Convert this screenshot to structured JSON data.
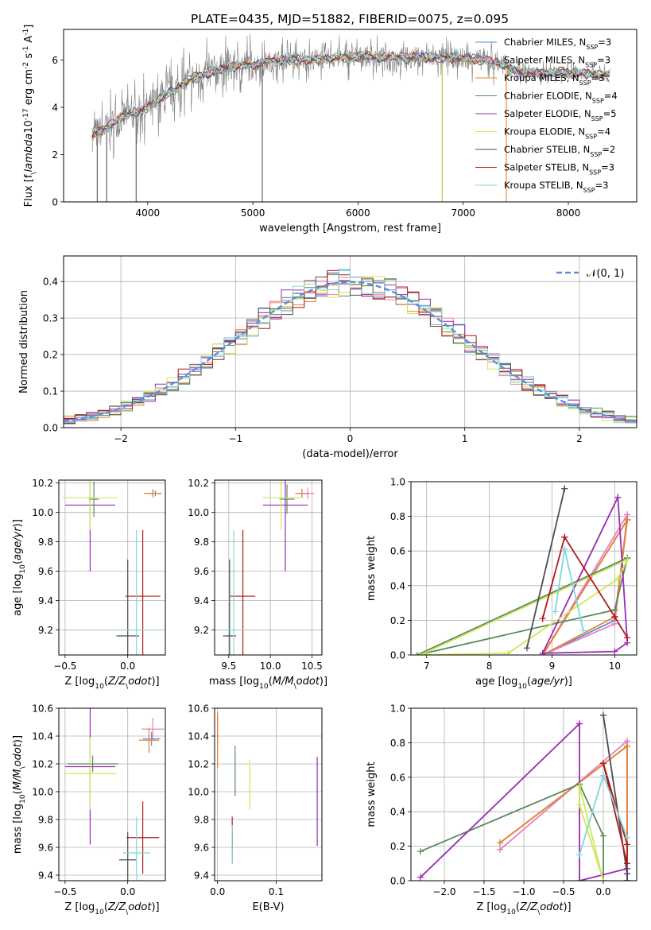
{
  "figure_title": "PLATE=0435, MJD=51882, FIBERID=0075, z=0.095",
  "colors": {
    "Chabrier MILES": "#5a8fd6",
    "Salpeter MILES": "#e87fc0",
    "Kroupa MILES": "#e8822e",
    "Chabrier ELODIE": "#5a8a5e",
    "Salpeter ELODIE": "#9a2bb5",
    "Kroupa ELODIE": "#cfe85a",
    "Chabrier STELIB": "#4d4d4d",
    "Salpeter STELIB": "#b01a1a",
    "Kroupa STELIB": "#7ed8dc",
    "data": "#808080",
    "gaussian": "#5a8fd6",
    "grid": "#b0b0b0"
  },
  "legend_spectrum": [
    "Chabrier MILES, N$_{SSP}$=3",
    "Salpeter MILES, N$_{SSP}$=3",
    "Kroupa MILES, N$_{SSP}$=3",
    "Chabrier ELODIE, N$_{SSP}$=4",
    "Salpeter ELODIE, N$_{SSP}$=5",
    "Kroupa ELODIE, N$_{SSP}$=4",
    "Chabrier STELIB, N$_{SSP}$=2",
    "Salpeter STELIB, N$_{SSP}$=3",
    "Kroupa STELIB, N$_{SSP}$=3"
  ],
  "chart_data": [
    {
      "id": "spectrum",
      "type": "line",
      "xlabel": "wavelength [Angstrom, rest frame]",
      "ylabel": "Flux [f$_\\lambda$10$^{-17}$ erg cm$^{-2}$ s$^{-1}$ A$^{-1}$]",
      "xlim": [
        3200,
        8650
      ],
      "ylim": [
        0,
        7.3
      ],
      "xticks": [
        4000,
        5000,
        6000,
        7000,
        8000
      ],
      "yticks": [
        0,
        2,
        4,
        6
      ],
      "continuum": {
        "x": [
          3470,
          3600,
          3700,
          3800,
          3900,
          4000,
          4100,
          4200,
          4300,
          4400,
          4500,
          4600,
          4700,
          4800,
          4900,
          5000,
          5100,
          5200,
          5300,
          5400,
          5500,
          5600,
          5700,
          5800,
          5900,
          6000,
          6100,
          6200,
          6300,
          6400,
          6500,
          6600,
          6700,
          6800,
          6900,
          7000,
          7100,
          7200,
          7300,
          7400,
          7500,
          7600,
          7700,
          7800,
          7900,
          8000,
          8100,
          8200,
          8300,
          8400
        ],
        "y": [
          2.8,
          3.1,
          3.4,
          3.7,
          3.8,
          4.0,
          4.3,
          4.6,
          4.9,
          5.2,
          5.3,
          5.5,
          5.6,
          5.7,
          5.8,
          5.8,
          5.9,
          5.95,
          6.0,
          6.0,
          6.0,
          6.05,
          6.05,
          6.1,
          6.1,
          6.15,
          6.15,
          6.1,
          6.15,
          6.1,
          6.1,
          6.15,
          6.1,
          6.1,
          6.1,
          6.05,
          6.05,
          6.0,
          5.9,
          5.8,
          5.5,
          5.5,
          5.45,
          5.45,
          5.5,
          5.45,
          5.45,
          5.4,
          5.4,
          5.3
        ]
      },
      "spikes": [
        [
          3520,
          0
        ],
        [
          3610,
          0
        ],
        [
          3890,
          0
        ],
        [
          5090,
          0
        ],
        [
          6800,
          0
        ],
        [
          7410,
          0
        ]
      ]
    },
    {
      "id": "residuals",
      "type": "line",
      "xlabel": "(data-model)/error",
      "ylabel": "Normed distribution",
      "xlim": [
        -2.5,
        2.5
      ],
      "ylim": [
        0,
        0.47
      ],
      "xticks": [
        -2,
        -1,
        0,
        1,
        2
      ],
      "yticks": [
        0.0,
        0.1,
        0.2,
        0.3,
        0.4
      ],
      "legend": "$\\mathcal{N}(0,1)$",
      "x": [
        -2.5,
        -2.4,
        -2.3,
        -2.2,
        -2.1,
        -2.0,
        -1.9,
        -1.8,
        -1.7,
        -1.6,
        -1.5,
        -1.4,
        -1.3,
        -1.2,
        -1.1,
        -1.0,
        -0.9,
        -0.8,
        -0.7,
        -0.6,
        -0.5,
        -0.4,
        -0.3,
        -0.2,
        -0.1,
        0.0,
        0.1,
        0.2,
        0.3,
        0.4,
        0.5,
        0.6,
        0.7,
        0.8,
        0.9,
        1.0,
        1.1,
        1.2,
        1.3,
        1.4,
        1.5,
        1.6,
        1.7,
        1.8,
        1.9,
        2.0,
        2.1,
        2.2,
        2.3,
        2.4,
        2.5
      ],
      "gaussian": [
        0.018,
        0.022,
        0.028,
        0.035,
        0.044,
        0.054,
        0.066,
        0.079,
        0.094,
        0.111,
        0.13,
        0.15,
        0.171,
        0.194,
        0.218,
        0.242,
        0.266,
        0.29,
        0.312,
        0.333,
        0.352,
        0.368,
        0.381,
        0.391,
        0.397,
        0.399,
        0.397,
        0.391,
        0.381,
        0.368,
        0.352,
        0.333,
        0.312,
        0.29,
        0.266,
        0.242,
        0.218,
        0.194,
        0.171,
        0.15,
        0.13,
        0.111,
        0.094,
        0.079,
        0.066,
        0.054,
        0.044,
        0.035,
        0.028,
        0.022,
        0.018
      ]
    },
    {
      "id": "age-vs-Z",
      "type": "scatter",
      "xlabel": "Z [log$_{10}$($Z/Z_\\odot$)]",
      "ylabel": "age  [log$_{10}$($age/yr$)]",
      "xlim": [
        -0.55,
        0.3
      ],
      "ylim": [
        9.03,
        10.22
      ],
      "xticks": [
        -0.5,
        0.0
      ],
      "yticks": [
        9.2,
        9.4,
        9.6,
        9.8,
        10.0,
        10.2
      ],
      "points": [
        {
          "series": "Chabrier MILES",
          "x": 0.22,
          "y": 10.13,
          "xerr": 0.05,
          "yerr": 0.02
        },
        {
          "series": "Salpeter MILES",
          "x": 0.2,
          "y": 10.13,
          "xerr": 0.06,
          "yerr": 0.03
        },
        {
          "series": "Kroupa MILES",
          "x": 0.2,
          "y": 10.13,
          "xerr": 0.07,
          "yerr": 0.02
        },
        {
          "series": "Chabrier ELODIE",
          "x": -0.27,
          "y": 10.09,
          "xerr": 0.04,
          "yerr": 0.12
        },
        {
          "series": "Salpeter ELODIE",
          "x": -0.3,
          "y": 10.05,
          "xerr": 0.2,
          "yerr": 0.45
        },
        {
          "series": "Kroupa ELODIE",
          "x": -0.3,
          "y": 10.1,
          "xerr": 0.22,
          "yerr": 0.22
        },
        {
          "series": "Chabrier STELIB",
          "x": 0.0,
          "y": 9.16,
          "xerr": 0.09,
          "yerr": 0.52
        },
        {
          "series": "Salpeter STELIB",
          "x": 0.12,
          "y": 9.43,
          "xerr": 0.14,
          "yerr": 0.45
        },
        {
          "series": "Kroupa STELIB",
          "x": 0.07,
          "y": 9.2,
          "xerr": 0.14,
          "yerr": 0.68
        }
      ]
    },
    {
      "id": "age-vs-mass",
      "type": "scatter",
      "xlabel": "mass [log$_{10}$($M/M_\\odot$)]",
      "ylabel": "",
      "xlim": [
        9.33,
        10.62
      ],
      "ylim": [
        9.03,
        10.22
      ],
      "xticks": [
        9.5,
        10.0,
        10.5
      ],
      "yticks": [
        9.2,
        9.4,
        9.6,
        9.8,
        10.0,
        10.2
      ],
      "points": [
        {
          "series": "Chabrier MILES",
          "x": 10.38,
          "y": 10.13,
          "xerr": 0.07,
          "yerr": 0.03
        },
        {
          "series": "Salpeter MILES",
          "x": 10.45,
          "y": 10.13,
          "xerr": 0.08,
          "yerr": 0.04
        },
        {
          "series": "Kroupa MILES",
          "x": 10.38,
          "y": 10.13,
          "xerr": 0.08,
          "yerr": 0.03
        },
        {
          "series": "Chabrier ELODIE",
          "x": 10.2,
          "y": 10.09,
          "xerr": 0.09,
          "yerr": 0.1
        },
        {
          "series": "Salpeter ELODIE",
          "x": 10.18,
          "y": 10.05,
          "xerr": 0.27,
          "yerr": 0.45
        },
        {
          "series": "Kroupa ELODIE",
          "x": 10.13,
          "y": 10.1,
          "xerr": 0.23,
          "yerr": 0.22
        },
        {
          "series": "Chabrier STELIB",
          "x": 9.51,
          "y": 9.16,
          "xerr": 0.08,
          "yerr": 0.52
        },
        {
          "series": "Salpeter STELIB",
          "x": 9.67,
          "y": 9.43,
          "xerr": 0.15,
          "yerr": 0.45
        },
        {
          "series": "Kroupa STELIB",
          "x": 9.56,
          "y": 9.2,
          "xerr": 0.12,
          "yerr": 0.68
        }
      ]
    },
    {
      "id": "weight-vs-age",
      "type": "line",
      "xlabel": "age  [log$_{10}$($age/yr$)]",
      "ylabel": "mass weight",
      "xlim": [
        6.75,
        10.35
      ],
      "ylim": [
        0,
        1.0
      ],
      "xticks": [
        7,
        8,
        9,
        10
      ],
      "yticks": [
        0.0,
        0.2,
        0.4,
        0.6,
        0.8,
        1.0
      ],
      "series": [
        {
          "name": "Chabrier MILES",
          "x": [
            10.2,
            10.0,
            8.85,
            10.2
          ],
          "y": [
            0.78,
            0.2,
            0.0,
            0.78
          ]
        },
        {
          "name": "Salpeter MILES",
          "x": [
            10.2,
            10.0,
            8.85,
            10.2
          ],
          "y": [
            0.81,
            0.18,
            0.0,
            0.81
          ]
        },
        {
          "name": "Kroupa MILES",
          "x": [
            10.2,
            10.0,
            8.85,
            10.2
          ],
          "y": [
            0.78,
            0.22,
            0.0,
            0.78
          ]
        },
        {
          "name": "Chabrier ELODIE",
          "x": [
            10.2,
            10.0,
            6.85,
            10.2
          ],
          "y": [
            0.56,
            0.26,
            0.0,
            0.56
          ]
        },
        {
          "name": "Salpeter ELODIE",
          "x": [
            10.05,
            10.2,
            10.0,
            8.85,
            10.05
          ],
          "y": [
            0.91,
            0.07,
            0.02,
            0.01,
            0.91
          ]
        },
        {
          "name": "Kroupa ELODIE",
          "x": [
            10.2,
            10.05,
            8.3,
            6.9,
            10.2
          ],
          "y": [
            0.55,
            0.44,
            0.01,
            0.0,
            0.55
          ]
        },
        {
          "name": "Chabrier STELIB",
          "x": [
            9.2,
            8.6,
            9.2
          ],
          "y": [
            0.96,
            0.04,
            0.96
          ]
        },
        {
          "name": "Salpeter STELIB",
          "x": [
            9.2,
            8.85,
            9.2,
            10.0,
            10.2,
            10.0
          ],
          "y": [
            0.68,
            0.21,
            0.68,
            0.22,
            0.1,
            0.22
          ]
        },
        {
          "name": "Kroupa STELIB",
          "x": [
            9.2,
            9.05,
            9.2,
            9.5,
            9.2
          ],
          "y": [
            0.61,
            0.25,
            0.61,
            0.14,
            0.61
          ]
        }
      ]
    },
    {
      "id": "mass-vs-Z",
      "type": "scatter",
      "xlabel": "Z [log$_{10}$($Z/Z_\\odot$)]",
      "ylabel": "mass [log$_{10}$($M/M_\\odot$)]",
      "xlim": [
        -0.55,
        0.3
      ],
      "ylim": [
        9.36,
        10.6
      ],
      "xticks": [
        -0.5,
        0.0
      ],
      "yticks": [
        9.4,
        9.6,
        9.8,
        10.0,
        10.2,
        10.4,
        10.6
      ],
      "points": [
        {
          "series": "Chabrier MILES",
          "x": 0.19,
          "y": 10.38,
          "xerr": 0.07,
          "yerr": 0.05
        },
        {
          "series": "Salpeter MILES",
          "x": 0.2,
          "y": 10.45,
          "xerr": 0.09,
          "yerr": 0.08
        },
        {
          "series": "Kroupa MILES",
          "x": 0.17,
          "y": 10.37,
          "xerr": 0.08,
          "yerr": 0.09
        },
        {
          "series": "Chabrier ELODIE",
          "x": -0.28,
          "y": 10.2,
          "xerr": 0.2,
          "yerr": 0.06
        },
        {
          "series": "Salpeter ELODIE",
          "x": -0.3,
          "y": 10.18,
          "xerr": 0.2,
          "yerr": 0.56
        },
        {
          "series": "Kroupa ELODIE",
          "x": -0.3,
          "y": 10.13,
          "xerr": 0.21,
          "yerr": 0.26
        },
        {
          "series": "Chabrier STELIB",
          "x": 0.0,
          "y": 9.51,
          "xerr": 0.07,
          "yerr": 0.2
        },
        {
          "series": "Salpeter STELIB",
          "x": 0.12,
          "y": 9.67,
          "xerr": 0.13,
          "yerr": 0.26
        },
        {
          "series": "Kroupa STELIB",
          "x": 0.07,
          "y": 9.56,
          "xerr": 0.11,
          "yerr": 0.26
        }
      ]
    },
    {
      "id": "mass-vs-EBV",
      "type": "scatter",
      "xlabel": "E(B-V)",
      "ylabel": "",
      "xlim": [
        -0.005,
        0.178
      ],
      "ylim": [
        9.36,
        10.6
      ],
      "xticks": [
        0.0,
        0.1
      ],
      "yticks": [
        9.4,
        9.6,
        9.8,
        10.0,
        10.2,
        10.4,
        10.6
      ],
      "points": [
        {
          "series": "Chabrier MILES",
          "x": 0.0,
          "y": 10.38,
          "xerr": 0.0,
          "yerr": 0.05
        },
        {
          "series": "Salpeter MILES",
          "x": 0.0,
          "y": 10.45,
          "xerr": 0.0,
          "yerr": 0.1
        },
        {
          "series": "Kroupa MILES",
          "x": 0.0,
          "y": 10.37,
          "xerr": 0.0,
          "yerr": 0.2
        },
        {
          "series": "Chabrier ELODIE",
          "x": 0.03,
          "y": 10.15,
          "xerr": 0.0,
          "yerr": 0.18
        },
        {
          "series": "Salpeter ELODIE",
          "x": 0.17,
          "y": 9.93,
          "xerr": 0.0,
          "yerr": 0.32
        },
        {
          "series": "Kroupa ELODIE",
          "x": 0.055,
          "y": 10.05,
          "xerr": 0.0,
          "yerr": 0.18
        },
        {
          "series": "Chabrier STELIB",
          "x": 0.025,
          "y": 9.6,
          "xerr": 0.0,
          "yerr": 0.11
        },
        {
          "series": "Salpeter STELIB",
          "x": 0.025,
          "y": 9.7,
          "xerr": 0.0,
          "yerr": 0.12
        },
        {
          "series": "Kroupa STELIB",
          "x": 0.025,
          "y": 9.62,
          "xerr": 0.0,
          "yerr": 0.14
        }
      ]
    },
    {
      "id": "weight-vs-Z",
      "type": "line",
      "xlabel": "Z [log$_{10}$($Z/Z_\\odot$)]",
      "ylabel": "mass weight",
      "xlim": [
        -2.42,
        0.42
      ],
      "ylim": [
        0,
        1.0
      ],
      "xticks": [
        -2.0,
        -1.5,
        -1.0,
        -0.5,
        0.0
      ],
      "yticks": [
        0.0,
        0.2,
        0.4,
        0.6,
        0.8,
        1.0
      ],
      "series": [
        {
          "name": "Chabrier MILES",
          "x": [
            0.3,
            -1.3,
            0.3,
            0.3
          ],
          "y": [
            0.78,
            0.22,
            0.78,
            0.0
          ]
        },
        {
          "name": "Salpeter MILES",
          "x": [
            0.3,
            -1.3,
            0.3,
            0.3
          ],
          "y": [
            0.81,
            0.18,
            0.81,
            0.0
          ]
        },
        {
          "name": "Kroupa MILES",
          "x": [
            0.3,
            -1.3,
            0.3,
            0.3
          ],
          "y": [
            0.78,
            0.22,
            0.78,
            0.0
          ]
        },
        {
          "name": "Chabrier ELODIE",
          "x": [
            -0.3,
            -2.3,
            -0.3,
            0.0,
            0.0
          ],
          "y": [
            0.56,
            0.17,
            0.56,
            0.26,
            0.0
          ]
        },
        {
          "name": "Salpeter ELODIE",
          "x": [
            -0.3,
            -2.3,
            -0.3,
            -0.3,
            0.3,
            0.3
          ],
          "y": [
            0.91,
            0.02,
            0.91,
            0.0,
            0.07,
            0.0
          ]
        },
        {
          "name": "Kroupa ELODIE",
          "x": [
            -0.3,
            -0.3,
            0.0,
            -0.3
          ],
          "y": [
            0.55,
            0.44,
            0.0,
            0.55
          ]
        },
        {
          "name": "Chabrier STELIB",
          "x": [
            0.0,
            0.3,
            0.3
          ],
          "y": [
            0.96,
            0.04,
            0.0
          ]
        },
        {
          "name": "Salpeter STELIB",
          "x": [
            0.0,
            0.3,
            0.3,
            0.0
          ],
          "y": [
            0.68,
            0.21,
            0.1,
            0.68
          ]
        },
        {
          "name": "Kroupa STELIB",
          "x": [
            0.0,
            -0.3,
            0.0,
            0.3
          ],
          "y": [
            0.61,
            0.15,
            0.61,
            0.25
          ]
        }
      ]
    }
  ]
}
